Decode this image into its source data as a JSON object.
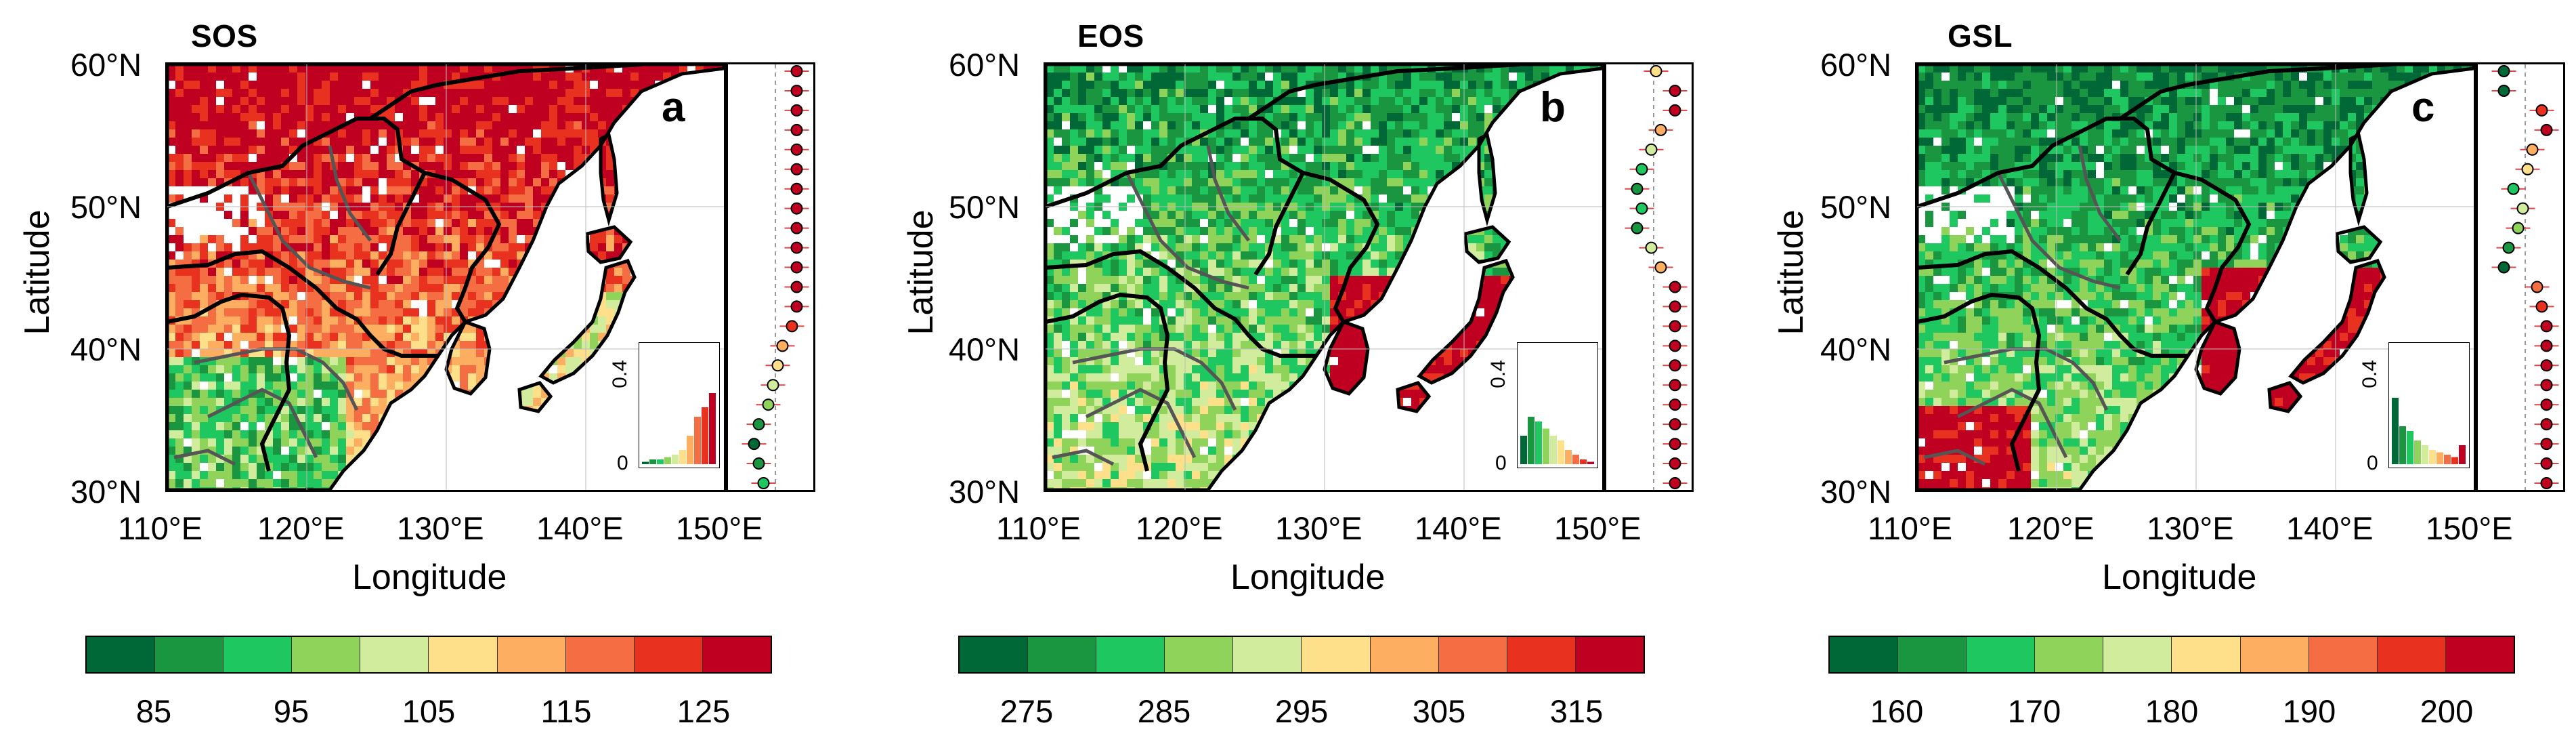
{
  "colors": {
    "scale": [
      "#006837",
      "#1a9641",
      "#1ec75f",
      "#8fd35a",
      "#d1ec9c",
      "#fee08b",
      "#fdae61",
      "#f46d43",
      "#e8311f",
      "#c00020"
    ],
    "sea": "#ffffff",
    "border": "#000000",
    "province": "#555555"
  },
  "shared_axes": {
    "y_ticks": [
      "60°N",
      "50°N",
      "40°N",
      "30°N"
    ],
    "x_ticks": [
      "110°E",
      "120°E",
      "130°E",
      "140°E",
      "150°E"
    ],
    "y_label": "Latitude",
    "x_label": "Longitude",
    "inset_ticks": [
      "0.4",
      "0"
    ]
  },
  "panels": [
    {
      "title": "SOS",
      "letter": "a",
      "colorbar_ticks": [
        "85",
        "95",
        "105",
        "115",
        "125"
      ],
      "dominant": "red",
      "inset_bars": [
        0.01,
        0.02,
        0.02,
        0.03,
        0.04,
        0.06,
        0.12,
        0.2,
        0.24,
        0.3
      ],
      "profile_classes": [
        9,
        9,
        9,
        9,
        9,
        9,
        9,
        9,
        9,
        9,
        9,
        9,
        9,
        8,
        6,
        5,
        4,
        3,
        1,
        0,
        1,
        2
      ]
    },
    {
      "title": "EOS",
      "letter": "b",
      "colorbar_ticks": [
        "275",
        "285",
        "295",
        "305",
        "315"
      ],
      "dominant": "green",
      "inset_bars": [
        0.12,
        0.2,
        0.18,
        0.15,
        0.12,
        0.1,
        0.06,
        0.04,
        0.02,
        0.01
      ],
      "profile_classes": [
        5,
        9,
        9,
        6,
        4,
        2,
        1,
        2,
        1,
        4,
        6,
        9,
        9,
        9,
        9,
        9,
        9,
        9,
        9,
        9,
        9,
        9
      ]
    },
    {
      "title": "GSL",
      "letter": "c",
      "colorbar_ticks": [
        "160",
        "170",
        "180",
        "190",
        "200"
      ],
      "dominant": "green",
      "inset_bars": [
        0.28,
        0.16,
        0.14,
        0.1,
        0.08,
        0.06,
        0.05,
        0.04,
        0.03,
        0.08
      ],
      "profile_classes": [
        0,
        0,
        8,
        9,
        6,
        5,
        2,
        4,
        3,
        1,
        0,
        7,
        8,
        9,
        9,
        9,
        9,
        9,
        9,
        9,
        9,
        9
      ]
    }
  ]
}
